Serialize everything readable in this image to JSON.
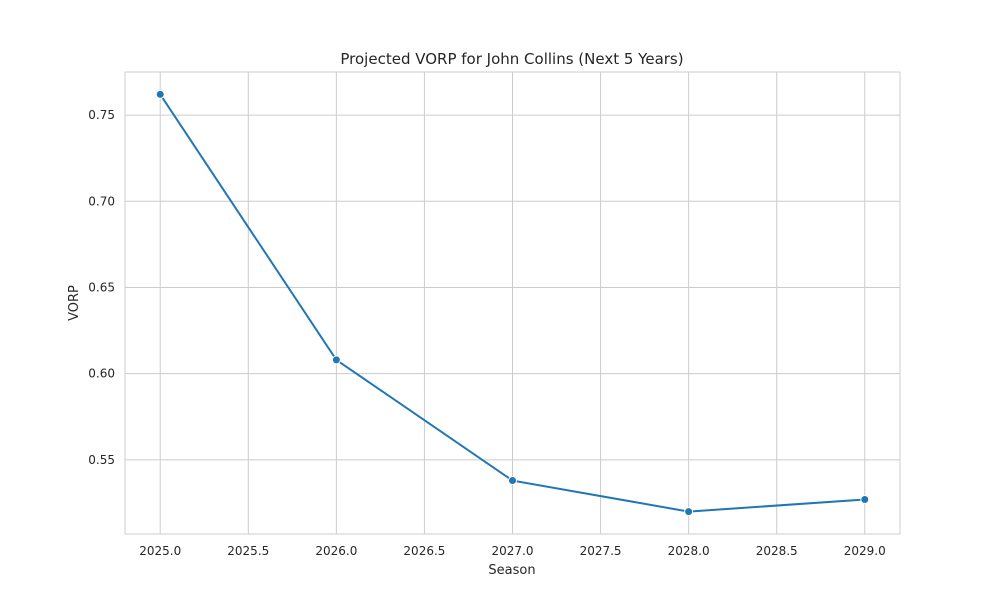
{
  "chart_data": {
    "type": "line",
    "title": "Projected VORP for John Collins (Next 5 Years)",
    "xlabel": "Season",
    "ylabel": "VORP",
    "x": [
      2025,
      2026,
      2027,
      2028,
      2029
    ],
    "series": [
      {
        "values": [
          0.762,
          0.608,
          0.538,
          0.52,
          0.527
        ],
        "color": "#1f77b4"
      }
    ],
    "xlim": [
      2024.8,
      2029.2
    ],
    "ylim": [
      0.507,
      0.775
    ],
    "xticks": [
      2025.0,
      2025.5,
      2026.0,
      2026.5,
      2027.0,
      2027.5,
      2028.0,
      2028.5,
      2029.0
    ],
    "xtick_labels": [
      "2025.0",
      "2025.5",
      "2026.0",
      "2026.5",
      "2027.0",
      "2027.5",
      "2028.0",
      "2028.5",
      "2029.0"
    ],
    "yticks": [
      0.55,
      0.6,
      0.65,
      0.7,
      0.75
    ],
    "ytick_labels": [
      "0.55",
      "0.60",
      "0.65",
      "0.70",
      "0.75"
    ],
    "grid": true,
    "markers": true
  }
}
